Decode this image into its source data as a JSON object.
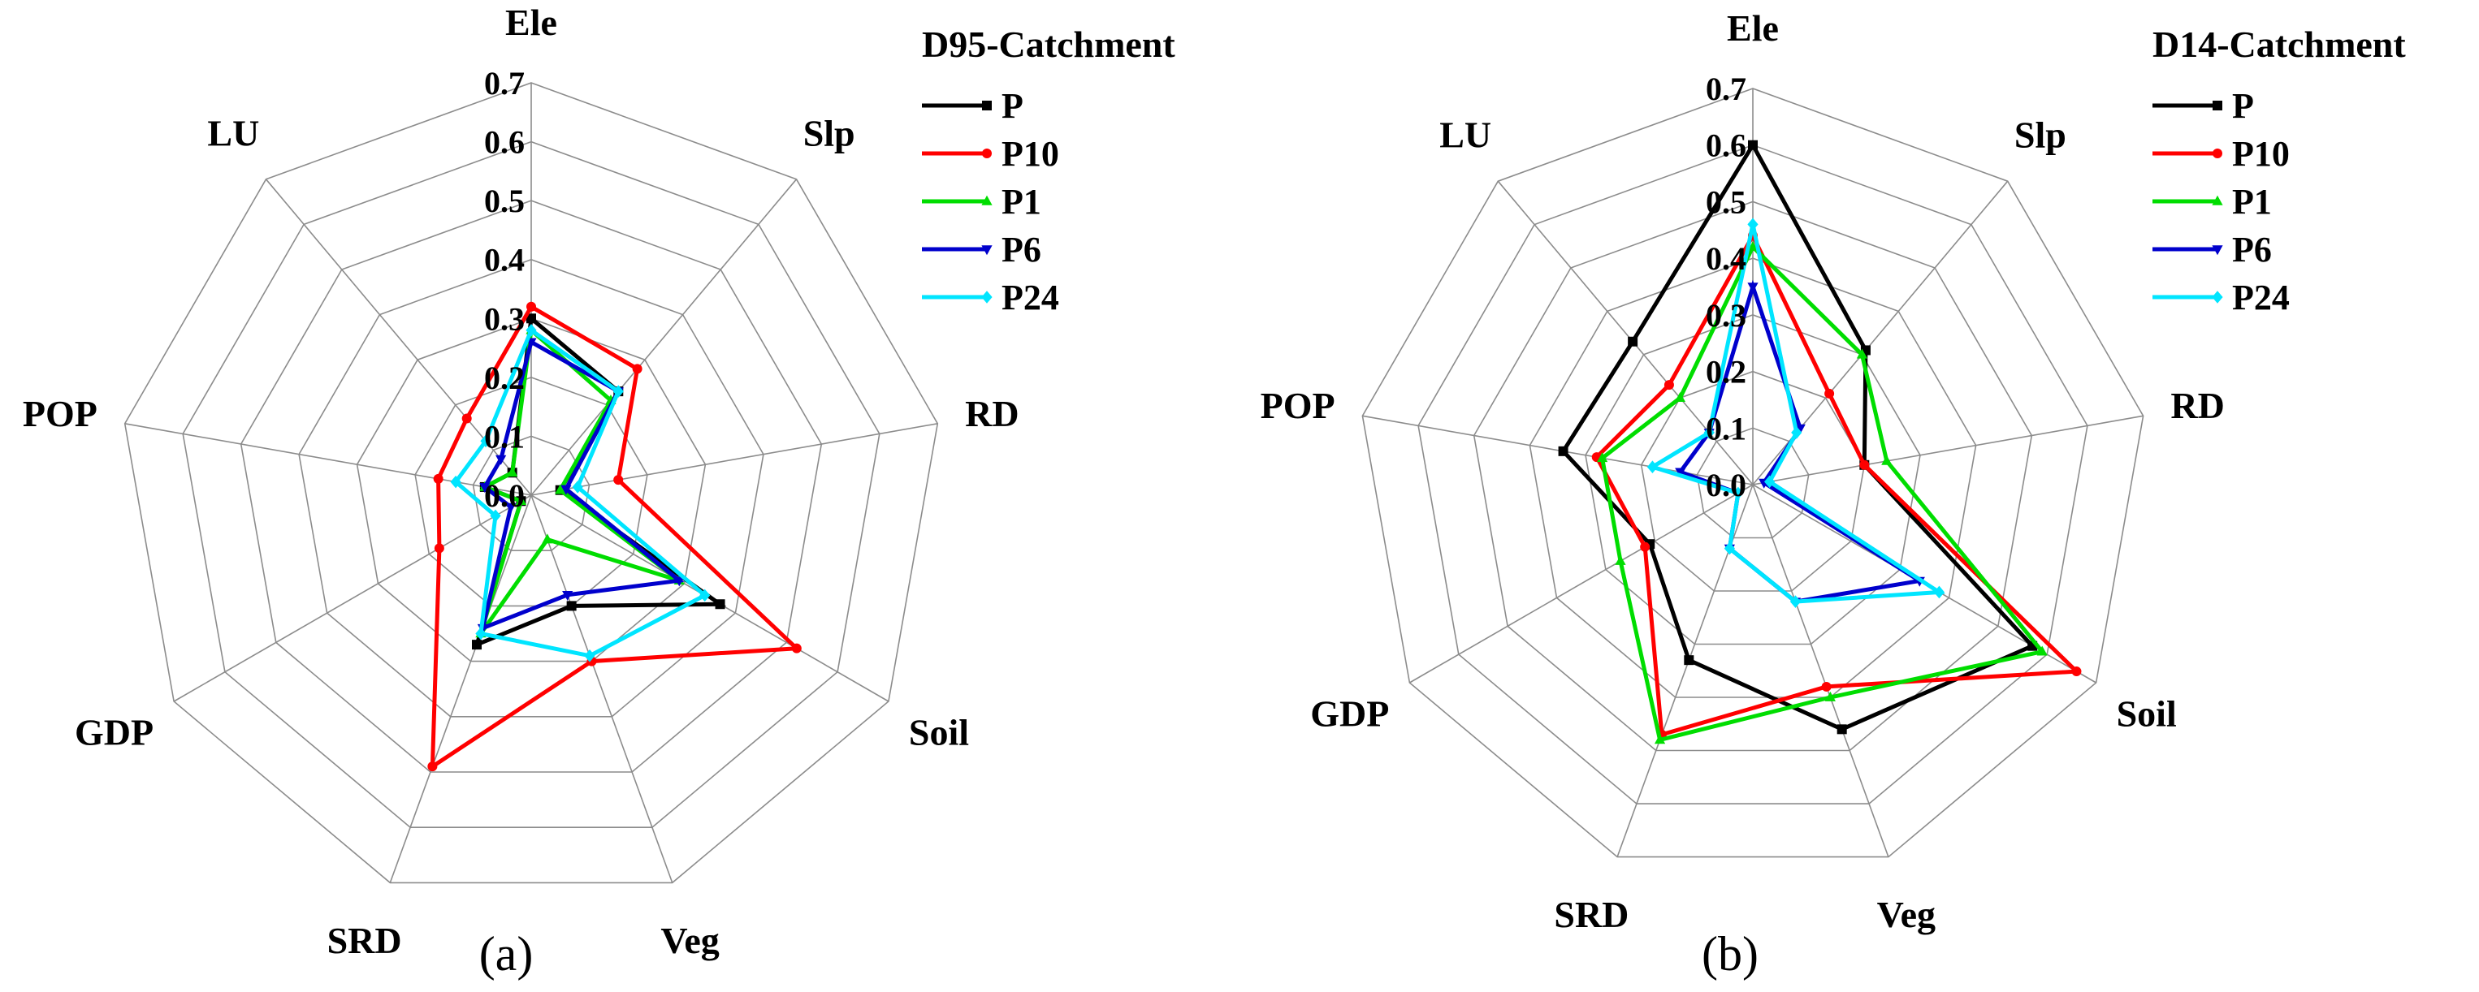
{
  "chart_data": [
    {
      "type": "radar",
      "panel_label": "(a)",
      "legend_title": "D95-Catchment",
      "axes": [
        "Ele",
        "Slp",
        "RD",
        "Soil",
        "Veg",
        "SRD",
        "GDP",
        "POP",
        "LU"
      ],
      "rlim": [
        0,
        0.7
      ],
      "ticks": [
        "0.0",
        "0.1",
        "0.2",
        "0.3",
        "0.4",
        "0.5",
        "0.6",
        "0.7"
      ],
      "series": [
        {
          "name": "P",
          "color": "#000000",
          "marker": "square",
          "values": [
            0.3,
            0.23,
            0.05,
            0.37,
            0.2,
            0.27,
            0.02,
            0.08,
            0.05
          ]
        },
        {
          "name": "P10",
          "color": "#ff0000",
          "marker": "circle",
          "values": [
            0.32,
            0.28,
            0.15,
            0.52,
            0.3,
            0.49,
            0.18,
            0.16,
            0.17
          ]
        },
        {
          "name": "P1",
          "color": "#00dd00",
          "marker": "triangle-up",
          "values": [
            0.28,
            0.21,
            0.05,
            0.29,
            0.08,
            0.25,
            0.02,
            0.08,
            0.05
          ]
        },
        {
          "name": "P6",
          "color": "#0000cc",
          "marker": "triangle-down",
          "values": [
            0.26,
            0.23,
            0.06,
            0.29,
            0.18,
            0.24,
            0.04,
            0.08,
            0.08
          ]
        },
        {
          "name": "P24",
          "color": "#00e5ff",
          "marker": "diamond",
          "values": [
            0.28,
            0.23,
            0.08,
            0.34,
            0.29,
            0.25,
            0.07,
            0.13,
            0.12
          ]
        }
      ]
    },
    {
      "type": "radar",
      "panel_label": "(b)",
      "legend_title": "D14-Catchment",
      "axes": [
        "Ele",
        "Slp",
        "RD",
        "Soil",
        "Veg",
        "SRD",
        "GDP",
        "POP",
        "LU"
      ],
      "rlim": [
        0,
        0.7
      ],
      "ticks": [
        "0.0",
        "0.1",
        "0.2",
        "0.3",
        "0.4",
        "0.5",
        "0.6",
        "0.7"
      ],
      "series": [
        {
          "name": "P",
          "color": "#000000",
          "marker": "square",
          "values": [
            0.6,
            0.31,
            0.2,
            0.57,
            0.46,
            0.33,
            0.21,
            0.34,
            0.33
          ]
        },
        {
          "name": "P10",
          "color": "#ff0000",
          "marker": "circle",
          "values": [
            0.44,
            0.21,
            0.2,
            0.66,
            0.38,
            0.47,
            0.22,
            0.28,
            0.23
          ]
        },
        {
          "name": "P1",
          "color": "#00dd00",
          "marker": "triangle-up",
          "values": [
            0.42,
            0.3,
            0.24,
            0.59,
            0.4,
            0.48,
            0.27,
            0.27,
            0.2
          ]
        },
        {
          "name": "P6",
          "color": "#0000cc",
          "marker": "triangle-down",
          "values": [
            0.35,
            0.13,
            0.02,
            0.34,
            0.22,
            0.12,
            0.03,
            0.13,
            0.12
          ]
        },
        {
          "name": "P24",
          "color": "#00e5ff",
          "marker": "diamond",
          "values": [
            0.46,
            0.12,
            0.03,
            0.38,
            0.22,
            0.12,
            0.03,
            0.18,
            0.12
          ]
        }
      ]
    }
  ]
}
